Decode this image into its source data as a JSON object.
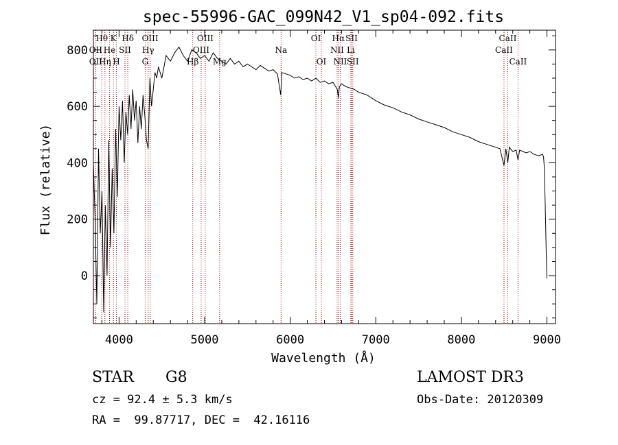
{
  "chart_data": {
    "type": "line",
    "title": "spec-55996-GAC_099N42_V1_sp04-092.fits",
    "xlabel": "Wavelength (Å)",
    "ylabel": "Flux (relative)",
    "xlim": [
      3700,
      9100
    ],
    "ylim": [
      -170,
      870
    ],
    "xticks": [
      4000,
      5000,
      6000,
      7000,
      8000,
      9000
    ],
    "yticks": [
      0,
      200,
      400,
      600,
      800
    ],
    "grid": false,
    "series": [
      {
        "name": "flux",
        "x": [
          3700,
          3720,
          3740,
          3760,
          3780,
          3800,
          3820,
          3840,
          3860,
          3880,
          3900,
          3920,
          3940,
          3960,
          3980,
          4000,
          4020,
          4040,
          4060,
          4080,
          4100,
          4120,
          4140,
          4160,
          4180,
          4200,
          4220,
          4240,
          4260,
          4280,
          4300,
          4320,
          4340,
          4360,
          4380,
          4400,
          4420,
          4440,
          4460,
          4480,
          4500,
          4550,
          4600,
          4650,
          4700,
          4750,
          4800,
          4850,
          4900,
          4950,
          5000,
          5050,
          5100,
          5150,
          5200,
          5250,
          5300,
          5350,
          5400,
          5450,
          5500,
          5550,
          5600,
          5650,
          5700,
          5750,
          5800,
          5850,
          5890,
          5900,
          5950,
          6000,
          6050,
          6100,
          6150,
          6200,
          6250,
          6300,
          6350,
          6400,
          6450,
          6500,
          6550,
          6563,
          6575,
          6600,
          6650,
          6700,
          6750,
          6800,
          6900,
          7000,
          7100,
          7200,
          7300,
          7400,
          7500,
          7600,
          7700,
          7800,
          7900,
          8000,
          8100,
          8200,
          8300,
          8400,
          8450,
          8498,
          8520,
          8542,
          8560,
          8600,
          8640,
          8662,
          8680,
          8720,
          8760,
          8800,
          8850,
          8900,
          8950,
          8960,
          8970,
          8980,
          8990,
          9000
        ],
        "y": [
          400,
          200,
          -100,
          450,
          150,
          300,
          -130,
          250,
          0,
          480,
          100,
          380,
          150,
          520,
          280,
          600,
          480,
          620,
          400,
          580,
          500,
          640,
          520,
          660,
          550,
          620,
          470,
          600,
          520,
          640,
          570,
          480,
          450,
          700,
          600,
          660,
          720,
          700,
          740,
          720,
          700,
          780,
          760,
          790,
          810,
          780,
          760,
          800,
          790,
          770,
          780,
          760,
          790,
          770,
          760,
          750,
          770,
          750,
          760,
          740,
          750,
          740,
          730,
          745,
          735,
          725,
          730,
          715,
          640,
          720,
          715,
          710,
          700,
          705,
          695,
          700,
          690,
          700,
          685,
          690,
          680,
          685,
          660,
          630,
          670,
          680,
          670,
          665,
          660,
          650,
          640,
          620,
          605,
          595,
          580,
          570,
          555,
          545,
          535,
          525,
          510,
          500,
          490,
          475,
          465,
          455,
          450,
          390,
          450,
          400,
          455,
          440,
          445,
          410,
          445,
          440,
          435,
          440,
          430,
          425,
          430,
          420,
          380,
          250,
          100,
          -10
        ]
      }
    ],
    "spectral_lines": [
      {
        "label": "Hθ",
        "x": 3798,
        "row": 1
      },
      {
        "label": "OII",
        "x": 3727,
        "row": 2
      },
      {
        "label": "OII",
        "x": 3727,
        "row": 3
      },
      {
        "label": "Hη",
        "x": 3835,
        "row": 3
      },
      {
        "label": "He",
        "x": 3889,
        "row": 2
      },
      {
        "label": "K",
        "x": 3934,
        "row": 1
      },
      {
        "label": "H",
        "x": 3969,
        "row": 3
      },
      {
        "label": "SII",
        "x": 4069,
        "row": 2
      },
      {
        "label": "Hδ",
        "x": 4102,
        "row": 1
      },
      {
        "label": "OIII",
        "x": 4363,
        "row": 1
      },
      {
        "label": "Hγ",
        "x": 4340,
        "row": 2
      },
      {
        "label": "G",
        "x": 4305,
        "row": 3
      },
      {
        "label": "OIII",
        "x": 5007,
        "row": 1
      },
      {
        "label": "OIII",
        "x": 4959,
        "row": 2
      },
      {
        "label": "Hβ",
        "x": 4861,
        "row": 3
      },
      {
        "label": "Mg",
        "x": 5175,
        "row": 3
      },
      {
        "label": "Na",
        "x": 5893,
        "row": 2
      },
      {
        "label": "OI",
        "x": 6300,
        "row": 1
      },
      {
        "label": "OI",
        "x": 6364,
        "row": 3
      },
      {
        "label": "Hα",
        "x": 6563,
        "row": 1
      },
      {
        "label": "NII",
        "x": 6548,
        "row": 2
      },
      {
        "label": "NII",
        "x": 6584,
        "row": 3
      },
      {
        "label": "SII",
        "x": 6717,
        "row": 1
      },
      {
        "label": "Li",
        "x": 6708,
        "row": 2
      },
      {
        "label": "SII",
        "x": 6731,
        "row": 3
      },
      {
        "label": "CaII",
        "x": 8542,
        "row": 1
      },
      {
        "label": "CaII",
        "x": 8498,
        "row": 2
      },
      {
        "label": "CaII",
        "x": 8662,
        "row": 3
      }
    ]
  },
  "info": {
    "object_class": "STAR",
    "subclass": "G8",
    "cz": "cz = 92.4 ± 5.3 km/s",
    "coords": "RA =  99.87717, DEC =  42.16116",
    "survey": "LAMOST DR3",
    "obs_date": "Obs-Date: 20120309"
  },
  "colors": {
    "line_marker": "#aa0000",
    "spectrum": "#000000"
  }
}
